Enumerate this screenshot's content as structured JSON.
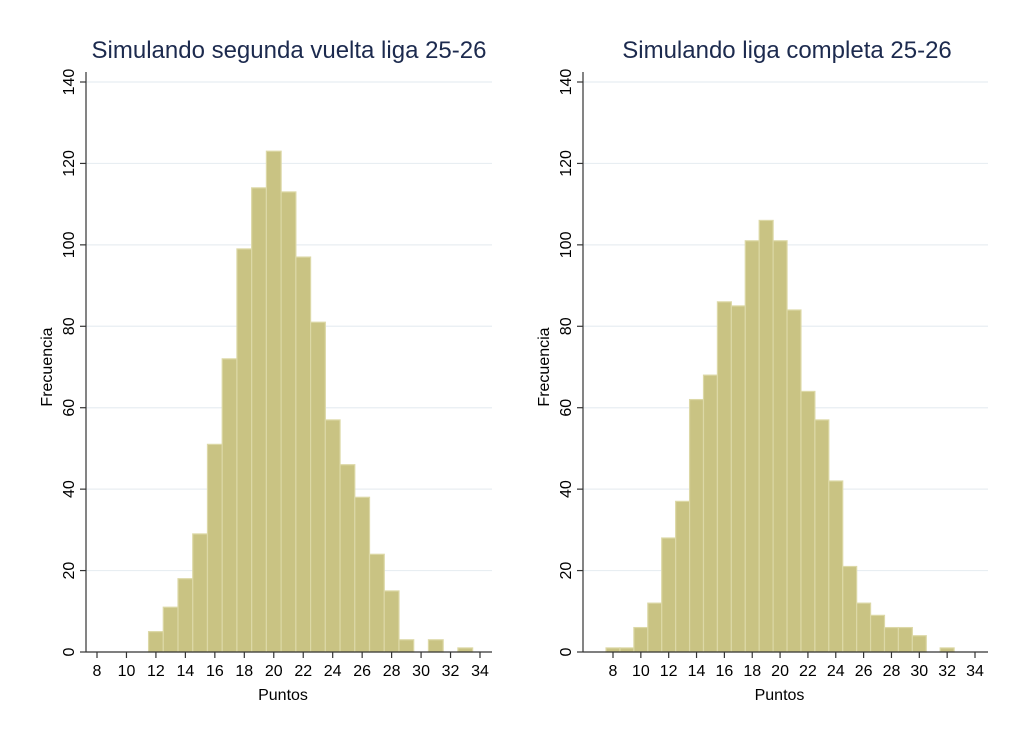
{
  "chart_data": [
    {
      "type": "bar",
      "title": "Simulando segunda vuelta liga 25-26",
      "xlabel": "Puntos",
      "ylabel": "Frecuencia",
      "ylim": [
        0,
        140
      ],
      "yticks": [
        0,
        20,
        40,
        60,
        80,
        100,
        120,
        140
      ],
      "xticks": [
        8,
        10,
        12,
        14,
        16,
        18,
        20,
        22,
        24,
        26,
        28,
        30,
        32,
        34
      ],
      "grid": true,
      "bar_color": "#c9c383",
      "categories": [
        12,
        13,
        14,
        15,
        16,
        17,
        18,
        19,
        20,
        21,
        22,
        23,
        24,
        25,
        26,
        27,
        28,
        29,
        30,
        31,
        32,
        33
      ],
      "values": [
        5,
        11,
        18,
        29,
        51,
        72,
        99,
        114,
        123,
        113,
        97,
        81,
        57,
        46,
        38,
        24,
        15,
        3,
        0,
        3,
        0,
        1
      ]
    },
    {
      "type": "bar",
      "title": "Simulando liga completa 25-26",
      "xlabel": "Puntos",
      "ylabel": "Frecuencia",
      "ylim": [
        0,
        140
      ],
      "yticks": [
        0,
        20,
        40,
        60,
        80,
        100,
        120,
        140
      ],
      "xticks": [
        8,
        10,
        12,
        14,
        16,
        18,
        20,
        22,
        24,
        26,
        28,
        30,
        32,
        34
      ],
      "grid": true,
      "bar_color": "#c9c383",
      "categories": [
        8,
        9,
        10,
        11,
        12,
        13,
        14,
        15,
        16,
        17,
        18,
        19,
        20,
        21,
        22,
        23,
        24,
        25,
        26,
        27,
        28,
        29,
        30,
        31,
        32
      ],
      "values": [
        1,
        1,
        6,
        12,
        28,
        37,
        62,
        68,
        86,
        85,
        101,
        106,
        101,
        84,
        64,
        57,
        42,
        21,
        12,
        9,
        6,
        6,
        4,
        0,
        1
      ]
    }
  ]
}
